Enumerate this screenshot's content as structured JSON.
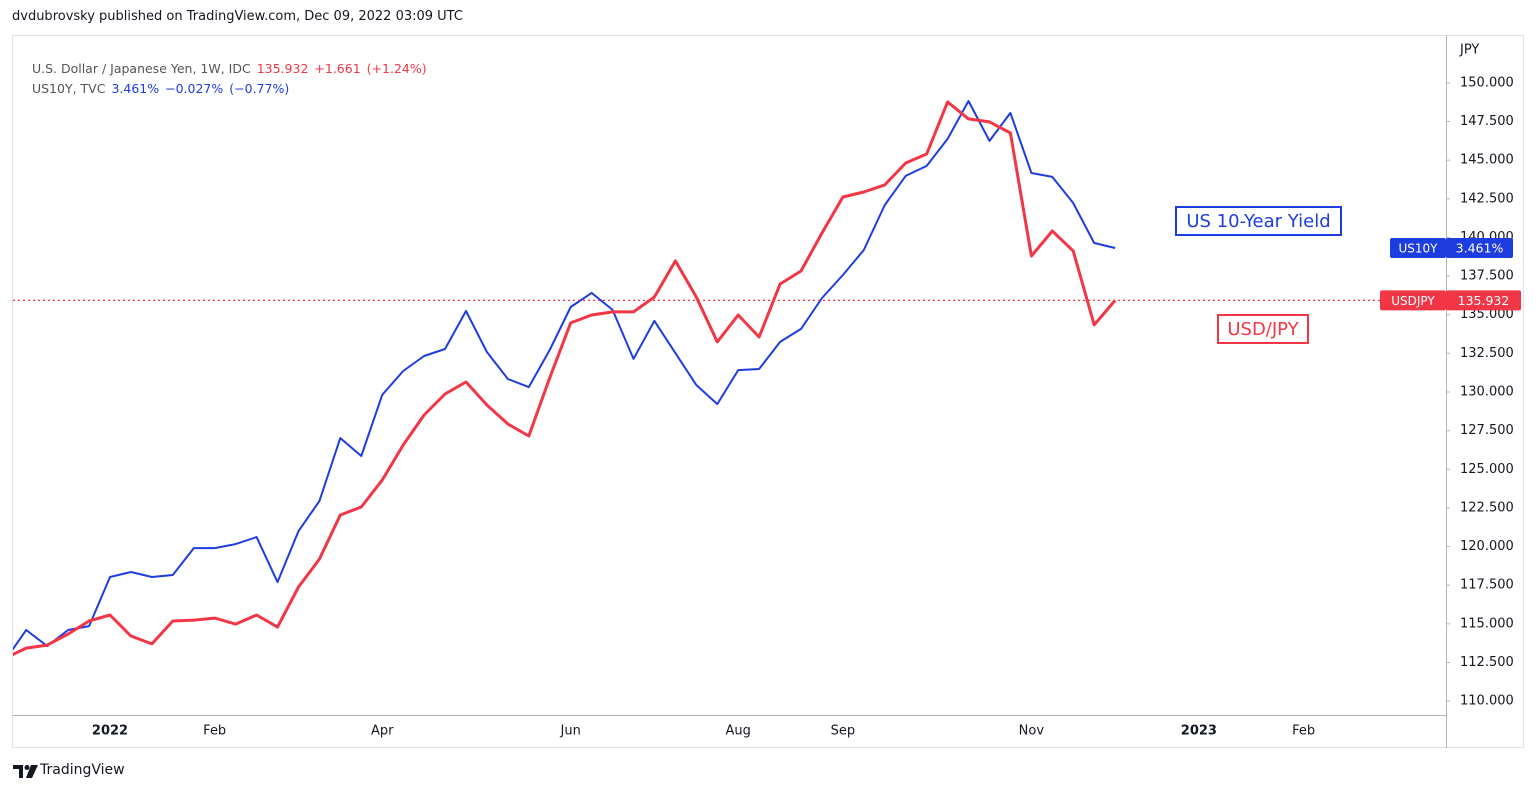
{
  "published": "dvdubrovsky published on TradingView.com, Dec 09, 2022 03:09 UTC",
  "brand": "TradingView",
  "chart_data": {
    "type": "line",
    "legend": [
      {
        "name": "U.S. Dollar / Japanese Yen, 1W, IDC",
        "last": "135.932",
        "change": "+1.661",
        "change_pct": "(+1.24%)",
        "color": "#f23645"
      },
      {
        "name": "US10Y, TVC",
        "last": "3.461%",
        "change": "−0.027%",
        "change_pct": "(−0.77%)",
        "color": "#1e3de0"
      }
    ],
    "y_axis_label": "JPY",
    "categories": [
      null,
      null,
      null,
      null,
      null,
      "2022",
      null,
      null,
      null,
      null,
      "Feb",
      null,
      null,
      null,
      null,
      null,
      null,
      null,
      "Apr",
      null,
      null,
      null,
      null,
      null,
      null,
      null,
      null,
      "Jun",
      null,
      null,
      null,
      null,
      null,
      null,
      null,
      "Aug",
      null,
      null,
      null,
      null,
      "Sep",
      null,
      null,
      null,
      null,
      null,
      null,
      null,
      null,
      "Nov",
      null,
      null,
      null,
      null,
      null,
      null,
      null,
      "2023",
      null,
      null,
      null,
      null,
      "Feb",
      null,
      null,
      null,
      null,
      null,
      null
    ],
    "series": [
      {
        "name": "USDJPY",
        "color": "#f23645",
        "last_label": "135.932",
        "values": [
          112.78,
          113.43,
          113.62,
          114.34,
          115.18,
          115.57,
          114.21,
          113.7,
          115.18,
          115.24,
          115.37,
          114.98,
          115.57,
          114.79,
          117.38,
          119.19,
          122.04,
          122.56,
          124.3,
          126.57,
          128.51,
          129.87,
          130.65,
          129.16,
          127.93,
          127.15,
          130.91,
          134.47,
          134.98,
          135.18,
          135.18,
          136.15,
          138.48,
          136.15,
          133.24,
          134.98,
          133.56,
          136.99,
          137.83,
          140.29,
          142.62,
          142.94,
          143.4,
          144.82,
          145.4,
          148.77,
          147.67,
          147.48,
          146.76,
          138.8,
          140.42,
          139.13,
          134.34,
          135.93,
          null,
          null,
          null,
          null,
          null,
          null,
          null,
          null,
          null,
          null,
          null,
          null,
          null,
          null,
          null
        ]
      },
      {
        "name": "US10Y",
        "color": "#1e3de0",
        "last_label": "3.461%",
        "values": [
          112.65,
          114.6,
          113.56,
          114.6,
          114.85,
          118.03,
          118.35,
          118.03,
          118.16,
          119.9,
          119.9,
          120.16,
          120.61,
          117.7,
          121.0,
          122.94,
          127.02,
          125.86,
          129.81,
          131.36,
          132.33,
          132.78,
          135.24,
          132.59,
          130.84,
          130.32,
          132.72,
          135.5,
          136.41,
          135.31,
          132.14,
          134.6,
          132.52,
          130.45,
          129.22,
          131.42,
          131.49,
          133.24,
          134.08,
          136.08,
          137.57,
          139.19,
          142.1,
          143.98,
          144.63,
          146.38,
          148.83,
          146.25,
          148.06,
          144.17,
          143.92,
          142.23,
          139.64,
          139.32,
          null,
          null,
          null,
          null,
          null,
          null,
          null,
          null,
          null,
          null,
          null,
          null,
          null,
          null,
          null
        ]
      }
    ],
    "annotations": [
      {
        "text": "US 10-Year Yield",
        "color": "#1e3de0"
      },
      {
        "text": "USD/JPY",
        "color": "#f23645"
      }
    ],
    "ylim": [
      109.1,
      153.1
    ],
    "yticks": [
      {
        "value": 110,
        "label": "110.000"
      },
      {
        "value": 112.5,
        "label": "112.500"
      },
      {
        "value": 115,
        "label": "115.000"
      },
      {
        "value": 117.5,
        "label": "117.500"
      },
      {
        "value": 120,
        "label": "120.000"
      },
      {
        "value": 122.5,
        "label": "122.500"
      },
      {
        "value": 125,
        "label": "125.000"
      },
      {
        "value": 127.5,
        "label": "127.500"
      },
      {
        "value": 130,
        "label": "130.000"
      },
      {
        "value": 132.5,
        "label": "132.500"
      },
      {
        "value": 135,
        "label": "135.000"
      },
      {
        "value": 137.5,
        "label": "137.500"
      },
      {
        "value": 140,
        "label": "140.000"
      },
      {
        "value": 142.5,
        "label": "142.500"
      },
      {
        "value": 145,
        "label": "145.000"
      },
      {
        "value": 147.5,
        "label": "147.500"
      },
      {
        "value": 150,
        "label": "150.000"
      }
    ],
    "grid": false
  }
}
